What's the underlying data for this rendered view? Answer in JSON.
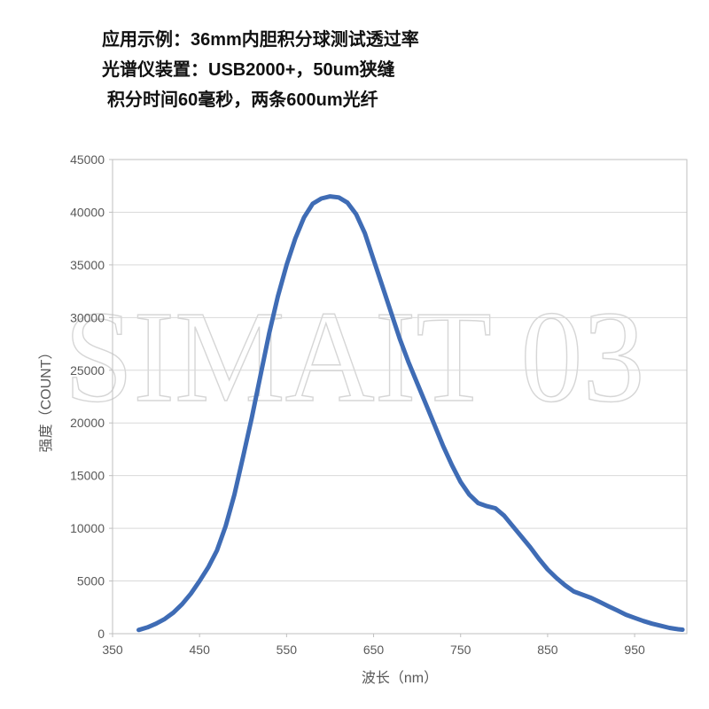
{
  "header": {
    "line1": "应用示例：36mm内胆积分球测试透过率",
    "line2": "光谱仪装置：USB2000+，50um狭缝",
    "line3": "积分时间60毫秒，两条600um光纤"
  },
  "watermark": "SIMAIT 03",
  "chart_data": {
    "type": "line",
    "title": "",
    "xlabel": "波长（nm）",
    "ylabel": "强度（COUNT）",
    "xlim": [
      350,
      1010
    ],
    "ylim": [
      0,
      45000
    ],
    "x_ticks": [
      350,
      450,
      550,
      650,
      750,
      850,
      950
    ],
    "y_ticks": [
      0,
      5000,
      10000,
      15000,
      20000,
      25000,
      30000,
      35000,
      40000,
      45000
    ],
    "grid": true,
    "legend_position": "none",
    "line_color": "#3f6cb5",
    "grid_color": "#d9d9d9",
    "axis_color": "#bfbfbf",
    "label_color": "#595959",
    "watermark_color": "#d6d6d6",
    "series": [
      {
        "name": "强度",
        "x": [
          380,
          390,
          400,
          410,
          420,
          430,
          440,
          450,
          460,
          470,
          480,
          490,
          500,
          510,
          520,
          530,
          540,
          550,
          560,
          570,
          580,
          590,
          600,
          610,
          620,
          630,
          640,
          650,
          660,
          670,
          680,
          690,
          700,
          710,
          720,
          730,
          740,
          750,
          760,
          770,
          780,
          790,
          800,
          810,
          820,
          830,
          840,
          850,
          860,
          870,
          880,
          890,
          900,
          910,
          920,
          930,
          940,
          950,
          960,
          970,
          980,
          990,
          1000,
          1005
        ],
        "y": [
          350,
          600,
          950,
          1400,
          2000,
          2800,
          3800,
          5000,
          6300,
          7900,
          10200,
          13200,
          16800,
          20500,
          24500,
          28500,
          32000,
          35000,
          37500,
          39500,
          40800,
          41300,
          41500,
          41400,
          40900,
          39800,
          38000,
          35500,
          33000,
          30500,
          28000,
          25800,
          23800,
          21800,
          19800,
          17800,
          16000,
          14400,
          13200,
          12400,
          12100,
          11900,
          11200,
          10200,
          9200,
          8200,
          7100,
          6100,
          5300,
          4600,
          4000,
          3700,
          3400,
          3000,
          2600,
          2200,
          1800,
          1500,
          1200,
          950,
          750,
          550,
          420,
          380
        ]
      }
    ]
  }
}
